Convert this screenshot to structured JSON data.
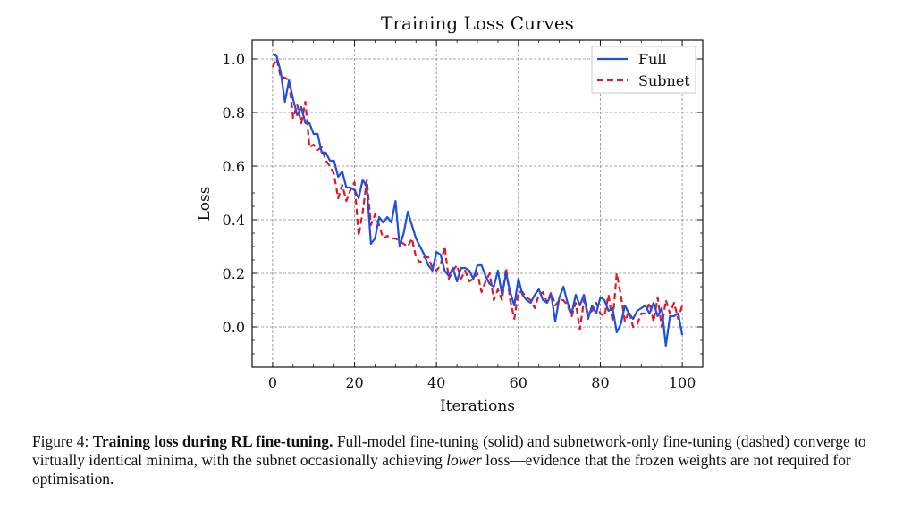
{
  "chart_data": {
    "type": "line",
    "title": "Training Loss Curves",
    "xlabel": "Iterations",
    "ylabel": "Loss",
    "xlim": [
      -5,
      105
    ],
    "ylim": [
      -0.15,
      1.07
    ],
    "xticks": [
      0,
      20,
      40,
      60,
      80,
      100
    ],
    "yticks": [
      0.0,
      0.2,
      0.4,
      0.6,
      0.8,
      1.0
    ],
    "xtick_labels": [
      "0",
      "20",
      "40",
      "60",
      "80",
      "100"
    ],
    "ytick_labels": [
      "0.0",
      "0.2",
      "0.4",
      "0.6",
      "0.8",
      "1.0"
    ],
    "grid": true,
    "legend_position": "top-right",
    "x": [
      0,
      1,
      2,
      3,
      4,
      5,
      6,
      7,
      8,
      9,
      10,
      11,
      12,
      13,
      14,
      15,
      16,
      17,
      18,
      19,
      20,
      21,
      22,
      23,
      24,
      25,
      26,
      27,
      28,
      29,
      30,
      31,
      32,
      33,
      34,
      35,
      36,
      37,
      38,
      39,
      40,
      41,
      42,
      43,
      44,
      45,
      46,
      47,
      48,
      49,
      50,
      51,
      52,
      53,
      54,
      55,
      56,
      57,
      58,
      59,
      60,
      61,
      62,
      63,
      64,
      65,
      66,
      67,
      68,
      69,
      70,
      71,
      72,
      73,
      74,
      75,
      76,
      77,
      78,
      79,
      80,
      81,
      82,
      83,
      84,
      85,
      86,
      87,
      88,
      89,
      90,
      91,
      92,
      93,
      94,
      95,
      96,
      97,
      98,
      99,
      100
    ],
    "series": [
      {
        "name": "Full",
        "color": "#1f4fe0",
        "linestyle": "solid",
        "values": [
          1.02,
          1.01,
          0.95,
          0.84,
          0.92,
          0.85,
          0.79,
          0.82,
          0.76,
          0.76,
          0.72,
          0.72,
          0.65,
          0.65,
          0.62,
          0.62,
          0.56,
          0.58,
          0.52,
          0.52,
          0.51,
          0.48,
          0.55,
          0.52,
          0.31,
          0.33,
          0.41,
          0.39,
          0.41,
          0.39,
          0.47,
          0.3,
          0.35,
          0.43,
          0.38,
          0.33,
          0.3,
          0.27,
          0.23,
          0.21,
          0.28,
          0.27,
          0.21,
          0.19,
          0.22,
          0.17,
          0.22,
          0.22,
          0.21,
          0.18,
          0.23,
          0.23,
          0.19,
          0.16,
          0.15,
          0.21,
          0.12,
          0.2,
          0.13,
          0.08,
          0.18,
          0.12,
          0.1,
          0.09,
          0.12,
          0.14,
          0.1,
          0.09,
          0.12,
          0.02,
          0.11,
          0.15,
          0.09,
          0.05,
          0.12,
          0.08,
          0.12,
          0.03,
          0.08,
          0.05,
          0.11,
          0.1,
          0.06,
          0.07,
          -0.02,
          0.01,
          0.08,
          0.05,
          0.03,
          0.06,
          0.07,
          0.08,
          0.05,
          0.09,
          0.04,
          0.07,
          -0.07,
          0.04,
          0.04,
          0.05,
          -0.03
        ]
      },
      {
        "name": "Subnet",
        "color": "#e0192a",
        "linestyle": "dashed",
        "values": [
          0.97,
          1.0,
          0.93,
          0.93,
          0.92,
          0.78,
          0.83,
          0.76,
          0.84,
          0.67,
          0.68,
          0.66,
          0.67,
          0.62,
          0.6,
          0.57,
          0.48,
          0.53,
          0.47,
          0.51,
          0.54,
          0.34,
          0.43,
          0.55,
          0.38,
          0.42,
          0.38,
          0.33,
          0.34,
          0.33,
          0.33,
          0.32,
          0.31,
          0.3,
          0.33,
          0.26,
          0.24,
          0.26,
          0.26,
          0.22,
          0.21,
          0.23,
          0.3,
          0.18,
          0.21,
          0.23,
          0.18,
          0.21,
          0.17,
          0.18,
          0.2,
          0.13,
          0.17,
          0.2,
          0.1,
          0.14,
          0.1,
          0.22,
          0.1,
          0.03,
          0.13,
          0.13,
          0.11,
          0.1,
          0.07,
          0.12,
          0.13,
          0.09,
          0.13,
          0.08,
          0.1,
          0.1,
          0.08,
          0.04,
          0.09,
          -0.01,
          0.1,
          0.05,
          0.06,
          0.09,
          0.05,
          0.04,
          0.12,
          0.02,
          0.2,
          0.12,
          0.02,
          0.06,
          0.0,
          0.01,
          0.05,
          0.05,
          0.09,
          0.02,
          0.11,
          0.0,
          0.1,
          0.05,
          0.09,
          0.03,
          0.08
        ]
      }
    ]
  },
  "caption": {
    "label": "Figure 4:",
    "bold_title": "Training loss during RL fine-tuning.",
    "text_1": "Full-model fine-tuning (solid) and subnetwork-only fine-tuning (dashed) converge to virtually identical minima, with the subnet occasionally achieving",
    "emphasis": "lower",
    "text_2": "loss—evidence that the frozen weights are not required for optimisation."
  }
}
